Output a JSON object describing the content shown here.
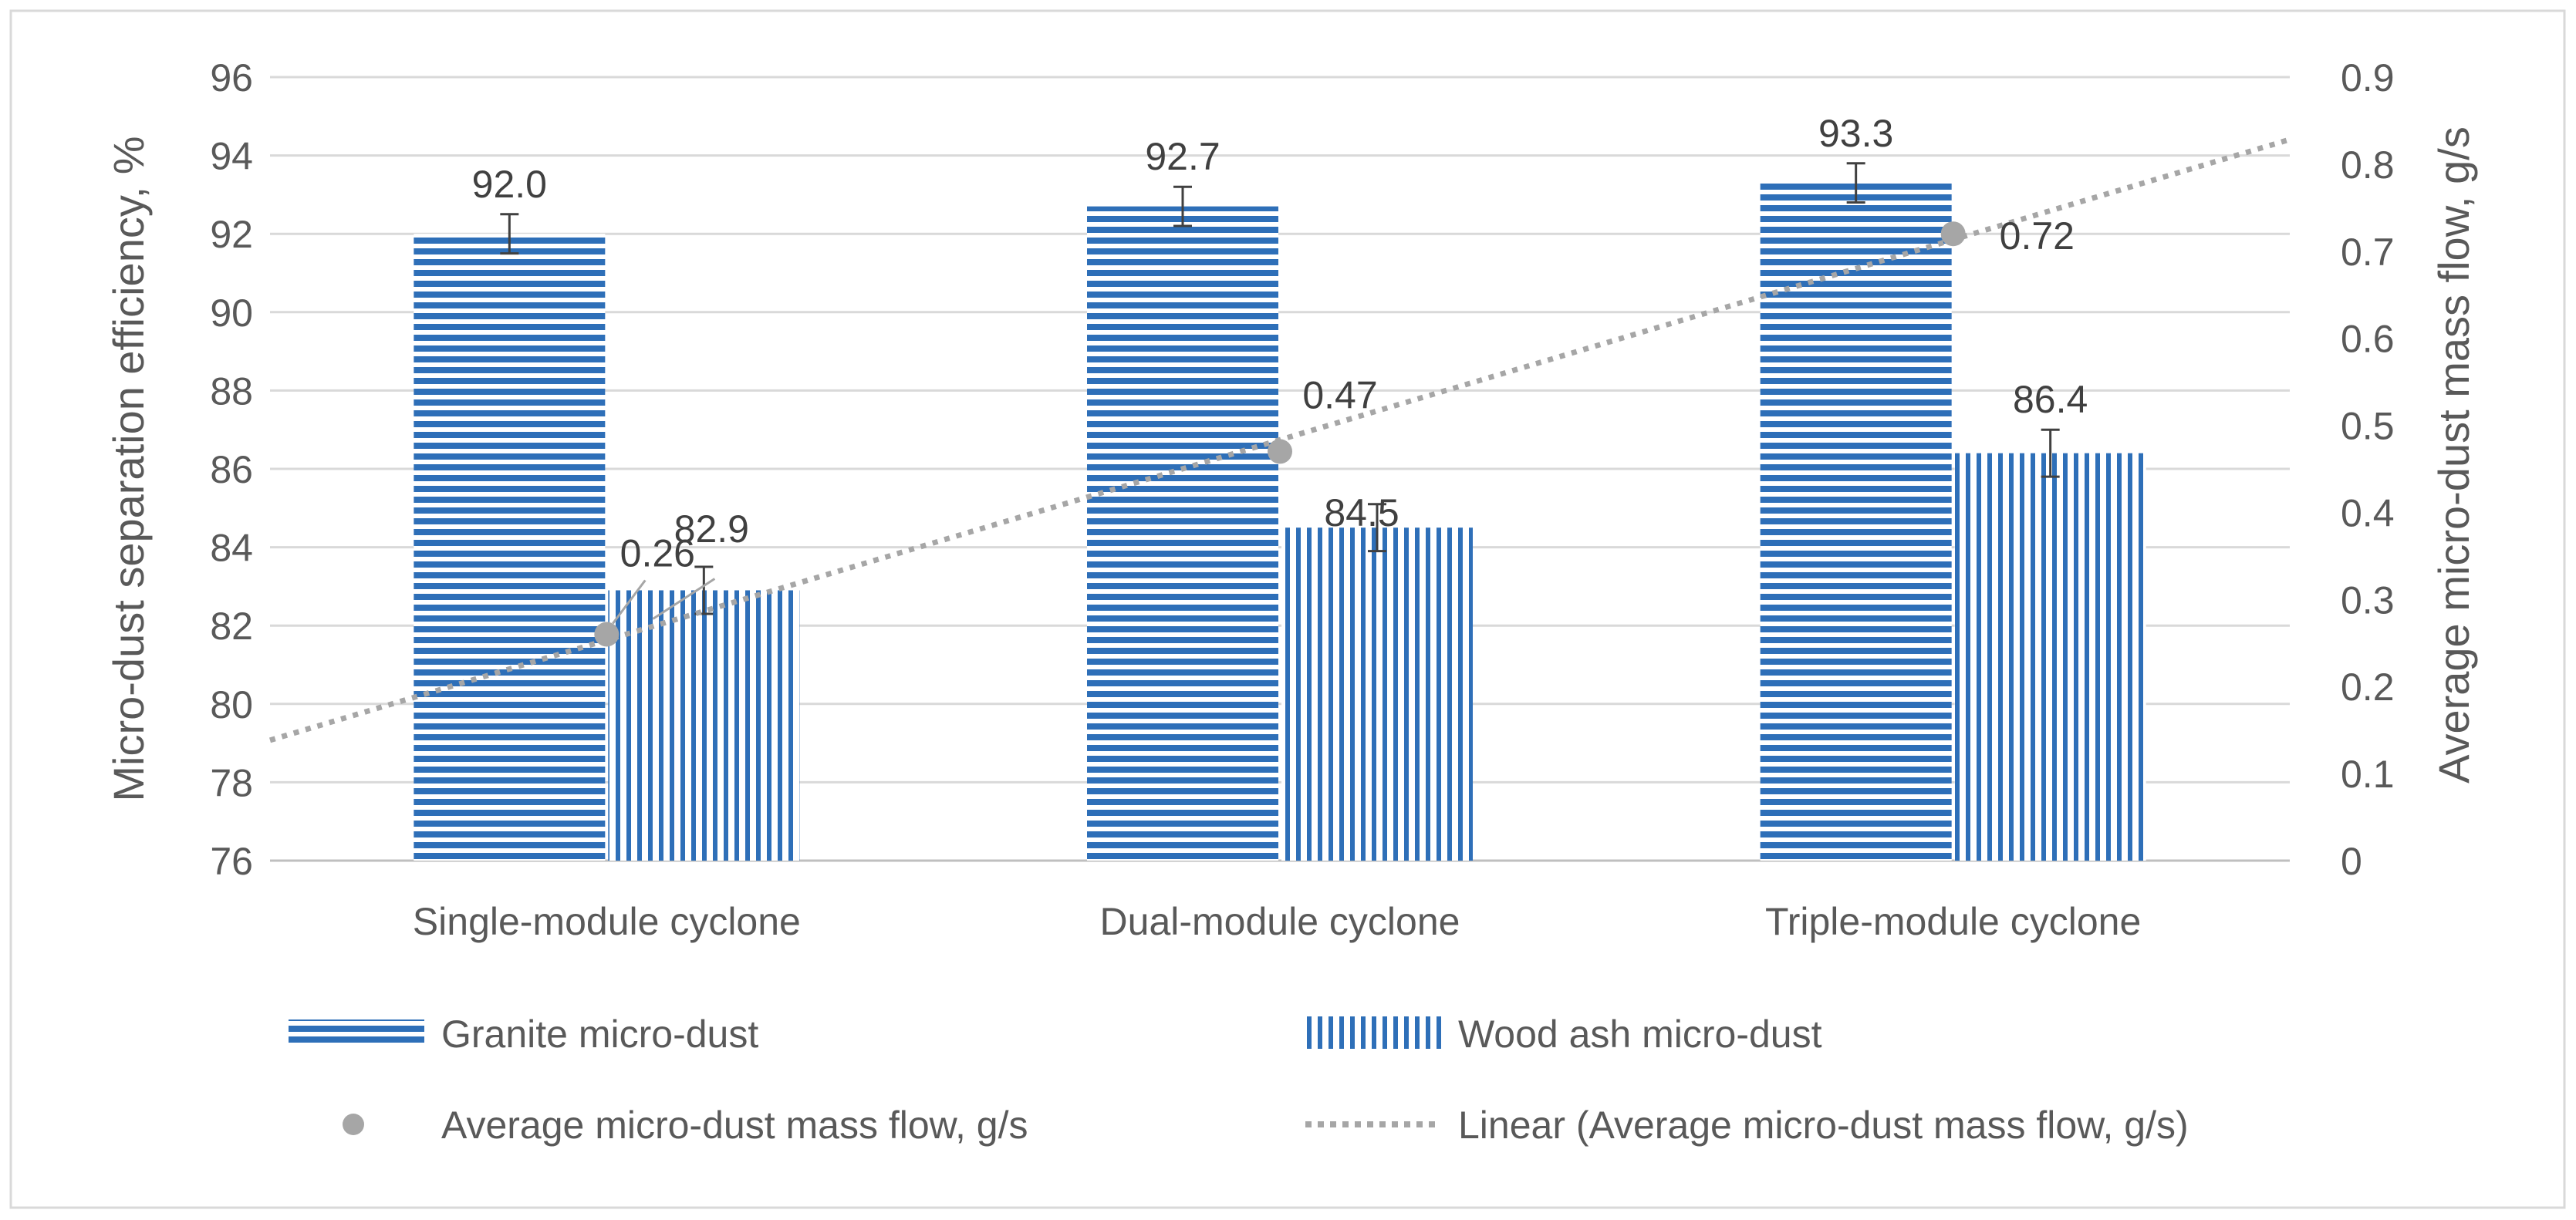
{
  "chart_data": {
    "type": "bar",
    "categories": [
      "Single-module cyclone",
      "Dual-module cyclone",
      "Triple-module cyclone"
    ],
    "series": [
      {
        "name": "Granite micro-dust",
        "axis": "left",
        "pattern": "horizontal-stripes",
        "values": [
          92.0,
          92.7,
          93.3
        ],
        "labels": [
          "92.0",
          "92.7",
          "93.3"
        ],
        "error": [
          0.5,
          0.5,
          0.5
        ]
      },
      {
        "name": "Wood ash micro-dust",
        "axis": "left",
        "pattern": "vertical-stripes",
        "values": [
          82.9,
          84.5,
          86.4
        ],
        "labels": [
          "82.9",
          "84.5",
          "86.4"
        ],
        "error": [
          0.6,
          0.6,
          0.6
        ]
      },
      {
        "name": "Average micro-dust mass flow, g/s",
        "axis": "right",
        "type": "scatter",
        "values": [
          0.26,
          0.47,
          0.72
        ],
        "labels": [
          "0.26",
          "0.47",
          "0.72"
        ]
      },
      {
        "name": "Linear (Average micro-dust mass flow, g/s)",
        "axis": "right",
        "type": "trendline",
        "style": "dotted"
      }
    ],
    "y_left": {
      "label": "Micro-dust separation efficiency, %",
      "min": 76,
      "max": 96,
      "step": 2,
      "ticks": [
        "76",
        "78",
        "80",
        "82",
        "84",
        "86",
        "88",
        "90",
        "92",
        "94",
        "96"
      ]
    },
    "y_right": {
      "label": "Average micro-dust mass flow, g/s",
      "min": 0,
      "max": 0.9,
      "step": 0.1,
      "ticks": [
        "0",
        "0.1",
        "0.2",
        "0.3",
        "0.4",
        "0.5",
        "0.6",
        "0.7",
        "0.8",
        "0.9"
      ]
    },
    "grid": true,
    "legend_position": "bottom",
    "colors": {
      "bars": "#2e6fb8",
      "marker": "#a6a6a6",
      "trend": "#a6a6a6",
      "grid": "#d9d9d9",
      "text": "#595959"
    }
  }
}
